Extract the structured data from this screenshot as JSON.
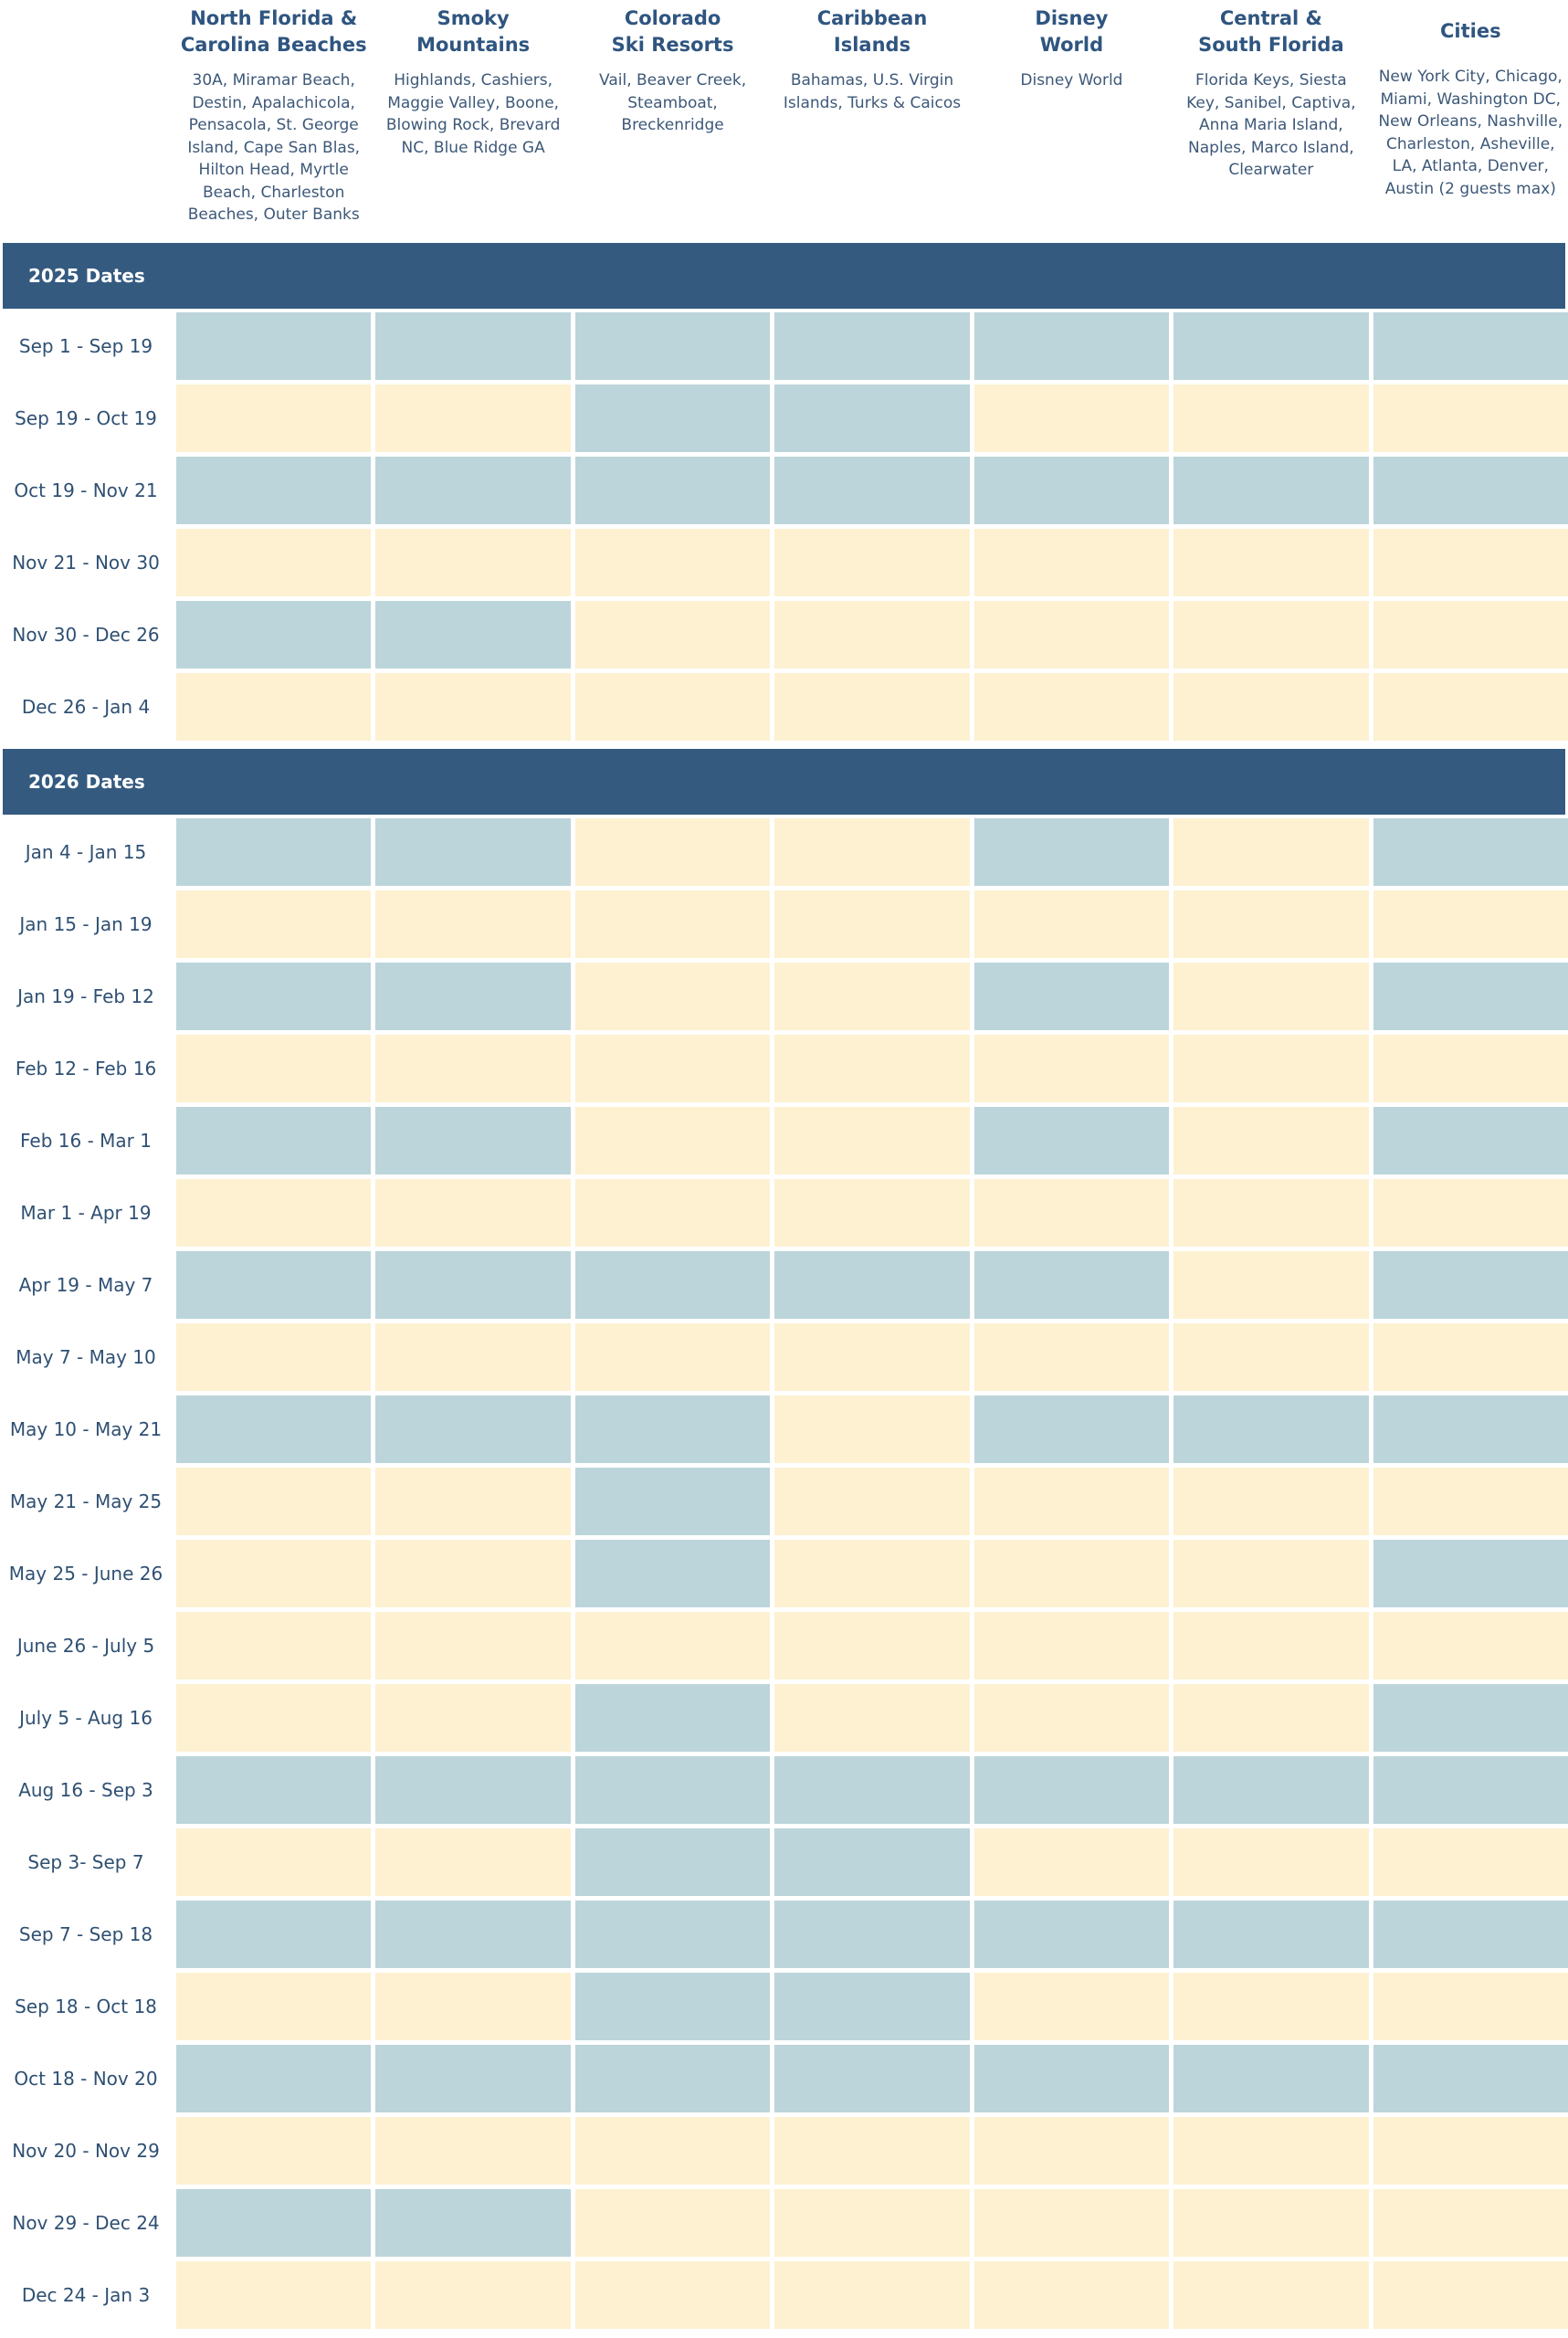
{
  "columns": [
    {
      "title": "North Florida &\nCarolina Beaches",
      "subtitle": "30A, Miramar Beach, Destin, Apalachicola, Pensacola, St. George Island, Cape San Blas, Hilton Head, Myrtle Beach, Charleston Beaches, Outer Banks"
    },
    {
      "title": "Smoky\nMountains",
      "subtitle": "Highlands, Cashiers, Maggie Valley, Boone, Blowing Rock, Brevard NC, Blue Ridge GA"
    },
    {
      "title": "Colorado\nSki Resorts",
      "subtitle": "Vail, Beaver Creek, Steamboat, Breckenridge"
    },
    {
      "title": "Caribbean\nIslands",
      "subtitle": "Bahamas, U.S. Virgin Islands, Turks & Caicos"
    },
    {
      "title": "Disney\nWorld",
      "subtitle": "Disney World"
    },
    {
      "title": "Central &\nSouth Florida",
      "subtitle": "Florida Keys, Siesta Key, Sanibel, Captiva, Anna Maria Island, Naples, Marco Island, Clearwater"
    },
    {
      "title": "Cities",
      "subtitle": "New York City, Chicago, Miami, Washington DC, New Orleans, Nashville, Charleston, Asheville, LA, Atlanta, Denver, Austin (2 guests max)"
    }
  ],
  "sections": [
    {
      "title": "2025 Dates",
      "rows": [
        {
          "label": "Sep 1 - Sep 19",
          "cells": [
            "#bcd5da",
            "#bcd5da",
            "#bcd5da",
            "#bcd5da",
            "#bcd5da",
            "#bcd5da",
            "#bcd5da"
          ]
        },
        {
          "label": "Sep 19 - Oct 19",
          "cells": [
            "#fdf1d2",
            "#fdf1d2",
            "#bcd5da",
            "#bcd5da",
            "#fdf1d2",
            "#fdf1d2",
            "#fdf1d2"
          ]
        },
        {
          "label": "Oct 19 - Nov 21",
          "cells": [
            "#bcd5da",
            "#bcd5da",
            "#bcd5da",
            "#bcd5da",
            "#bcd5da",
            "#bcd5da",
            "#bcd5da"
          ]
        },
        {
          "label": "Nov 21 - Nov 30",
          "cells": [
            "#fdf1d2",
            "#fdf1d2",
            "#fdf1d2",
            "#fdf1d2",
            "#fdf1d2",
            "#fdf1d2",
            "#fdf1d2"
          ]
        },
        {
          "label": "Nov 30 - Dec 26",
          "cells": [
            "#bcd5da",
            "#bcd5da",
            "#fdf1d2",
            "#fdf1d2",
            "#fdf1d2",
            "#fdf1d2",
            "#fdf1d2"
          ]
        },
        {
          "label": "Dec 26 - Jan 4",
          "cells": [
            "#fdf1d2",
            "#fdf1d2",
            "#fdf1d2",
            "#fdf1d2",
            "#fdf1d2",
            "#fdf1d2",
            "#fdf1d2"
          ]
        }
      ]
    },
    {
      "title": "2026 Dates",
      "rows": [
        {
          "label": "Jan 4 - Jan 15",
          "cells": [
            "#bcd5da",
            "#bcd5da",
            "#fdf1d2",
            "#fdf1d2",
            "#bcd5da",
            "#fdf1d2",
            "#bcd5da"
          ]
        },
        {
          "label": "Jan 15 - Jan 19",
          "cells": [
            "#fdf1d2",
            "#fdf1d2",
            "#fdf1d2",
            "#fdf1d2",
            "#fdf1d2",
            "#fdf1d2",
            "#fdf1d2"
          ]
        },
        {
          "label": "Jan 19 - Feb 12",
          "cells": [
            "#bcd5da",
            "#bcd5da",
            "#fdf1d2",
            "#fdf1d2",
            "#bcd5da",
            "#fdf1d2",
            "#bcd5da"
          ]
        },
        {
          "label": "Feb 12 - Feb 16",
          "cells": [
            "#fdf1d2",
            "#fdf1d2",
            "#fdf1d2",
            "#fdf1d2",
            "#fdf1d2",
            "#fdf1d2",
            "#fdf1d2"
          ]
        },
        {
          "label": "Feb 16 - Mar 1",
          "cells": [
            "#bcd5da",
            "#bcd5da",
            "#fdf1d2",
            "#fdf1d2",
            "#bcd5da",
            "#fdf1d2",
            "#bcd5da"
          ]
        },
        {
          "label": "Mar 1 - Apr 19",
          "cells": [
            "#fdf1d2",
            "#fdf1d2",
            "#fdf1d2",
            "#fdf1d2",
            "#fdf1d2",
            "#fdf1d2",
            "#fdf1d2"
          ]
        },
        {
          "label": "Apr 19 - May 7",
          "cells": [
            "#bcd5da",
            "#bcd5da",
            "#bcd5da",
            "#bcd5da",
            "#bcd5da",
            "#fdf1d2",
            "#bcd5da"
          ]
        },
        {
          "label": "May 7 - May 10",
          "cells": [
            "#fdf1d2",
            "#fdf1d2",
            "#fdf1d2",
            "#fdf1d2",
            "#fdf1d2",
            "#fdf1d2",
            "#fdf1d2"
          ]
        },
        {
          "label": "May 10 - May 21",
          "cells": [
            "#bcd5da",
            "#bcd5da",
            "#bcd5da",
            "#fdf1d2",
            "#bcd5da",
            "#bcd5da",
            "#bcd5da"
          ]
        },
        {
          "label": "May 21 - May 25",
          "cells": [
            "#fdf1d2",
            "#fdf1d2",
            "#bcd5da",
            "#fdf1d2",
            "#fdf1d2",
            "#fdf1d2",
            "#fdf1d2"
          ]
        },
        {
          "label": "May 25 - June 26",
          "cells": [
            "#fdf1d2",
            "#fdf1d2",
            "#bcd5da",
            "#fdf1d2",
            "#fdf1d2",
            "#fdf1d2",
            "#bcd5da"
          ]
        },
        {
          "label": "June 26 - July 5",
          "cells": [
            "#fdf1d2",
            "#fdf1d2",
            "#fdf1d2",
            "#fdf1d2",
            "#fdf1d2",
            "#fdf1d2",
            "#fdf1d2"
          ]
        },
        {
          "label": "July 5 - Aug 16",
          "cells": [
            "#fdf1d2",
            "#fdf1d2",
            "#bcd5da",
            "#fdf1d2",
            "#fdf1d2",
            "#fdf1d2",
            "#bcd5da"
          ]
        },
        {
          "label": "Aug 16 - Sep 3",
          "cells": [
            "#bcd5da",
            "#bcd5da",
            "#bcd5da",
            "#bcd5da",
            "#bcd5da",
            "#bcd5da",
            "#bcd5da"
          ]
        },
        {
          "label": "Sep 3- Sep 7",
          "cells": [
            "#fdf1d2",
            "#fdf1d2",
            "#bcd5da",
            "#bcd5da",
            "#fdf1d2",
            "#fdf1d2",
            "#fdf1d2"
          ]
        },
        {
          "label": "Sep 7 - Sep 18",
          "cells": [
            "#bcd5da",
            "#bcd5da",
            "#bcd5da",
            "#bcd5da",
            "#bcd5da",
            "#bcd5da",
            "#bcd5da"
          ]
        },
        {
          "label": "Sep 18 - Oct 18",
          "cells": [
            "#fdf1d2",
            "#fdf1d2",
            "#bcd5da",
            "#bcd5da",
            "#fdf1d2",
            "#fdf1d2",
            "#fdf1d2"
          ]
        },
        {
          "label": "Oct 18 - Nov 20",
          "cells": [
            "#bcd5da",
            "#bcd5da",
            "#bcd5da",
            "#bcd5da",
            "#bcd5da",
            "#bcd5da",
            "#bcd5da"
          ]
        },
        {
          "label": "Nov 20 - Nov 29",
          "cells": [
            "#fdf1d2",
            "#fdf1d2",
            "#fdf1d2",
            "#fdf1d2",
            "#fdf1d2",
            "#fdf1d2",
            "#fdf1d2"
          ]
        },
        {
          "label": "Nov 29 - Dec 24",
          "cells": [
            "#bcd5da",
            "#bcd5da",
            "#fdf1d2",
            "#fdf1d2",
            "#fdf1d2",
            "#fdf1d2",
            "#fdf1d2"
          ]
        },
        {
          "label": "Dec 24 - Jan 3",
          "cells": [
            "#fdf1d2",
            "#fdf1d2",
            "#fdf1d2",
            "#fdf1d2",
            "#fdf1d2",
            "#fdf1d2",
            "#fdf1d2"
          ]
        }
      ]
    }
  ]
}
